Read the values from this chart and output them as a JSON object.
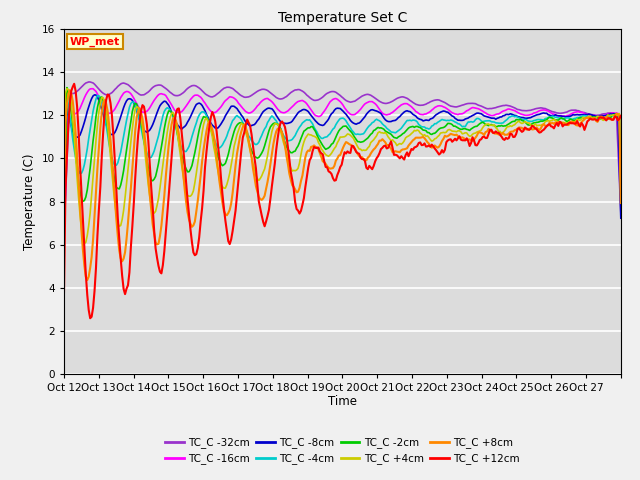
{
  "title": "Temperature Set C",
  "xlabel": "Time",
  "ylabel": "Temperature (C)",
  "ylim": [
    0,
    16
  ],
  "yticks": [
    0,
    2,
    4,
    6,
    8,
    10,
    12,
    14,
    16
  ],
  "bg_color": "#dcdcdc",
  "fig_color": "#f0f0f0",
  "series": [
    {
      "label": "TC_C -32cm",
      "color": "#9933cc",
      "lw": 1.2
    },
    {
      "label": "TC_C -16cm",
      "color": "#ff00ff",
      "lw": 1.2
    },
    {
      "label": "TC_C -8cm",
      "color": "#0000cc",
      "lw": 1.2
    },
    {
      "label": "TC_C -4cm",
      "color": "#00cccc",
      "lw": 1.2
    },
    {
      "label": "TC_C -2cm",
      "color": "#00cc00",
      "lw": 1.2
    },
    {
      "label": "TC_C +4cm",
      "color": "#cccc00",
      "lw": 1.2
    },
    {
      "label": "TC_C +8cm",
      "color": "#ff8800",
      "lw": 1.5
    },
    {
      "label": "TC_C +12cm",
      "color": "#ff0000",
      "lw": 1.5
    }
  ],
  "xtick_labels": [
    "Oct 12",
    "Oct 13",
    "Oct 14",
    "Oct 15",
    "Oct 16",
    "Oct 17",
    "Oct 18",
    "Oct 19",
    "Oct 20",
    "Oct 21",
    "Oct 22",
    "Oct 23",
    "Oct 24",
    "Oct 25",
    "Oct 26",
    "Oct 27",
    ""
  ],
  "annotation_label": "WP_met",
  "legend_ncol": 4
}
